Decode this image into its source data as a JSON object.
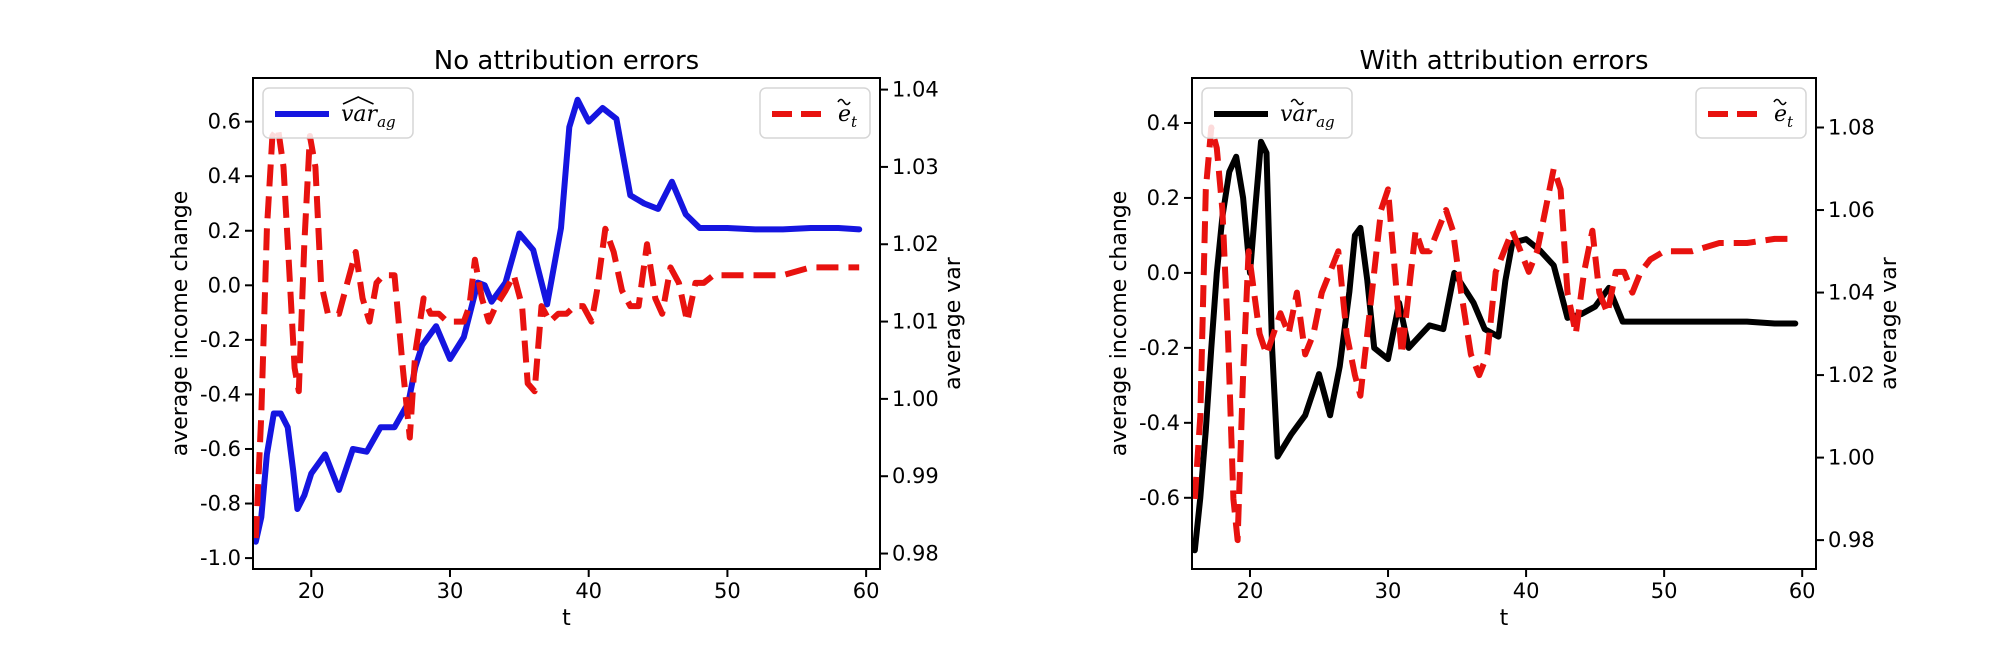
{
  "chart_data": [
    {
      "type": "line",
      "title": "No attribution errors",
      "xlabel": "t",
      "ylabel": "average income change",
      "y2label": "average var",
      "xlim": [
        15.8,
        61
      ],
      "ylim": [
        -1.04,
        0.76
      ],
      "y2lim": [
        0.978,
        1.0415
      ],
      "xticks": [
        20,
        30,
        40,
        50,
        60
      ],
      "yticks": [
        -1.0,
        -0.8,
        -0.6,
        -0.4,
        -0.2,
        0.0,
        0.2,
        0.4,
        0.6
      ],
      "ytick_labels": [
        "-1.0",
        "-0.8",
        "-0.6",
        "-0.4",
        "-0.2",
        "0.0",
        "0.2",
        "0.4",
        "0.6"
      ],
      "y2ticks": [
        0.98,
        0.99,
        1.0,
        1.01,
        1.02,
        1.03,
        1.04
      ],
      "y2tick_labels": [
        "0.98",
        "0.99",
        "1.00",
        "1.01",
        "1.02",
        "1.03",
        "1.04"
      ],
      "legend_left": {
        "main": "var",
        "sub": "ag",
        "mark": "hat"
      },
      "legend_right": {
        "main": "e",
        "sub": "t",
        "mark": "tilde"
      },
      "legend_left_placement": "upper-left",
      "legend_right_placement": "upper-right",
      "series": [
        {
          "axis": "left",
          "color": "#1515e0",
          "style": "solid",
          "x": [
            16,
            16.4,
            16.8,
            17.3,
            17.8,
            18.3,
            18.7,
            19,
            19.5,
            20,
            21,
            22,
            23,
            24,
            25,
            26,
            27,
            27.5,
            28,
            29,
            30,
            31,
            31.5,
            32,
            32.5,
            33,
            34,
            35,
            36,
            37,
            38,
            38.6,
            39.2,
            40,
            41,
            42,
            43,
            44,
            45,
            46,
            47,
            48,
            49,
            50,
            52,
            54,
            56,
            58,
            59.5
          ],
          "y": [
            -0.94,
            -0.85,
            -0.62,
            -0.47,
            -0.47,
            -0.52,
            -0.68,
            -0.82,
            -0.77,
            -0.69,
            -0.62,
            -0.75,
            -0.6,
            -0.61,
            -0.52,
            -0.52,
            -0.43,
            -0.3,
            -0.22,
            -0.15,
            -0.27,
            -0.19,
            -0.09,
            0.01,
            0.0,
            -0.06,
            0.01,
            0.19,
            0.13,
            -0.07,
            0.21,
            0.58,
            0.68,
            0.6,
            0.65,
            0.61,
            0.33,
            0.3,
            0.28,
            0.38,
            0.26,
            0.21,
            0.21,
            0.21,
            0.205,
            0.205,
            0.21,
            0.21,
            0.205
          ]
        },
        {
          "axis": "right",
          "color": "#e8120f",
          "style": "dashed",
          "x": [
            16,
            16.4,
            16.8,
            17.2,
            17.6,
            18,
            18.4,
            18.8,
            19.1,
            19.5,
            19.9,
            20.3,
            20.7,
            21.2,
            21.6,
            22,
            22.6,
            23.2,
            23.7,
            24.2,
            24.7,
            25.2,
            26,
            26.6,
            27.1,
            27.5,
            28.1,
            28.6,
            29.2,
            29.8,
            30.4,
            31,
            31.4,
            31.8,
            32.3,
            32.8,
            33.3,
            34,
            34.6,
            35.2,
            35.6,
            36.1,
            36.6,
            37.2,
            37.8,
            38.4,
            39,
            39.6,
            40.2,
            40.6,
            41.2,
            41.8,
            42.4,
            43,
            43.6,
            44.2,
            44.8,
            45.3,
            45.9,
            46.5,
            47.1,
            47.7,
            48.3,
            49,
            50,
            52,
            54,
            56,
            58,
            59.5
          ],
          "y": [
            0.982,
            0.998,
            1.022,
            1.034,
            1.035,
            1.03,
            1.017,
            1.004,
            1.001,
            1.02,
            1.034,
            1.03,
            1.015,
            1.011,
            1.011,
            1.011,
            1.015,
            1.019,
            1.013,
            1.01,
            1.015,
            1.016,
            1.016,
            1.004,
            0.995,
            1.006,
            1.013,
            1.011,
            1.011,
            1.01,
            1.01,
            1.01,
            1.012,
            1.018,
            1.013,
            1.01,
            1.012,
            1.014,
            1.016,
            1.012,
            1.002,
            1.001,
            1.012,
            1.01,
            1.011,
            1.011,
            1.012,
            1.012,
            1.01,
            1.014,
            1.022,
            1.019,
            1.014,
            1.012,
            1.012,
            1.02,
            1.013,
            1.011,
            1.017,
            1.015,
            1.01,
            1.015,
            1.015,
            1.016,
            1.016,
            1.016,
            1.016,
            1.017,
            1.017,
            1.017
          ]
        }
      ]
    },
    {
      "type": "line",
      "title": "With attribution errors",
      "xlabel": "t",
      "ylabel": "average income change",
      "y2label": "average var",
      "xlim": [
        15.8,
        61
      ],
      "ylim": [
        -0.79,
        0.52
      ],
      "y2lim": [
        0.973,
        1.092
      ],
      "xticks": [
        20,
        30,
        40,
        50,
        60
      ],
      "yticks": [
        -0.6,
        -0.4,
        -0.2,
        0.0,
        0.2,
        0.4
      ],
      "ytick_labels": [
        "-0.6",
        "-0.4",
        "-0.2",
        "0.0",
        "0.2",
        "0.4"
      ],
      "y2ticks": [
        0.98,
        1.0,
        1.02,
        1.04,
        1.06,
        1.08
      ],
      "y2tick_labels": [
        "0.98",
        "1.00",
        "1.02",
        "1.04",
        "1.06",
        "1.08"
      ],
      "legend_left": {
        "main": "var",
        "sub": "ag",
        "mark": "tilde"
      },
      "legend_right": {
        "main": "e",
        "sub": "t",
        "mark": "tilde"
      },
      "legend_left_placement": "upper-left",
      "legend_right_placement": "upper-right",
      "series": [
        {
          "axis": "left",
          "color": "#000000",
          "style": "solid",
          "x": [
            16,
            16.4,
            16.8,
            17.2,
            17.6,
            18,
            18.5,
            19,
            19.5,
            20,
            20.4,
            20.8,
            21.2,
            21.6,
            22,
            23,
            24,
            25,
            25.8,
            26.5,
            27.2,
            27.6,
            28,
            28.5,
            29,
            30,
            30.8,
            31.5,
            32,
            33,
            34,
            34.8,
            35.5,
            36.2,
            37,
            38,
            38.5,
            39,
            40,
            41,
            42,
            43,
            44,
            45,
            46,
            47,
            48,
            50,
            52,
            54,
            56,
            58,
            59.5
          ],
          "y": [
            -0.74,
            -0.6,
            -0.42,
            -0.2,
            0.0,
            0.15,
            0.27,
            0.31,
            0.2,
            0.0,
            0.18,
            0.35,
            0.32,
            -0.2,
            -0.49,
            -0.43,
            -0.38,
            -0.27,
            -0.38,
            -0.25,
            -0.05,
            0.1,
            0.12,
            -0.02,
            -0.2,
            -0.23,
            -0.08,
            -0.2,
            -0.18,
            -0.14,
            -0.15,
            0.0,
            -0.04,
            -0.08,
            -0.15,
            -0.17,
            -0.02,
            0.08,
            0.09,
            0.06,
            0.02,
            -0.12,
            -0.11,
            -0.09,
            -0.04,
            -0.13,
            -0.13,
            -0.13,
            -0.13,
            -0.13,
            -0.13,
            -0.135,
            -0.135
          ]
        },
        {
          "axis": "right",
          "color": "#e8120f",
          "style": "dashed",
          "x": [
            16,
            16.4,
            16.8,
            17.2,
            17.6,
            18,
            18.4,
            18.8,
            19.1,
            19.5,
            19.9,
            20.3,
            20.7,
            21.2,
            21.7,
            22.2,
            22.8,
            23.4,
            24,
            24.6,
            25.2,
            25.8,
            26.4,
            27,
            27.6,
            28,
            28.5,
            29,
            29.5,
            30,
            30.5,
            31,
            31.5,
            32,
            32.5,
            33,
            33.6,
            34.2,
            34.7,
            35.3,
            36,
            36.6,
            37.2,
            37.8,
            38.4,
            39,
            39.6,
            40.2,
            40.8,
            41.4,
            42,
            42.5,
            43,
            43.6,
            44.2,
            44.8,
            45.3,
            45.9,
            46.5,
            47.1,
            47.7,
            48.3,
            49,
            50,
            52,
            54,
            56,
            58,
            59.5
          ],
          "y": [
            0.99,
            1.01,
            1.065,
            1.08,
            1.075,
            1.06,
            1.03,
            0.99,
            0.98,
            1.02,
            1.05,
            1.04,
            1.03,
            1.025,
            1.03,
            1.035,
            1.03,
            1.04,
            1.025,
            1.03,
            1.04,
            1.045,
            1.05,
            1.03,
            1.02,
            1.015,
            1.03,
            1.045,
            1.06,
            1.065,
            1.045,
            1.025,
            1.04,
            1.055,
            1.05,
            1.05,
            1.055,
            1.06,
            1.055,
            1.04,
            1.025,
            1.02,
            1.025,
            1.045,
            1.05,
            1.055,
            1.05,
            1.045,
            1.05,
            1.06,
            1.07,
            1.065,
            1.04,
            1.03,
            1.045,
            1.055,
            1.04,
            1.035,
            1.045,
            1.045,
            1.04,
            1.045,
            1.048,
            1.05,
            1.05,
            1.052,
            1.052,
            1.053,
            1.053
          ]
        }
      ]
    }
  ]
}
